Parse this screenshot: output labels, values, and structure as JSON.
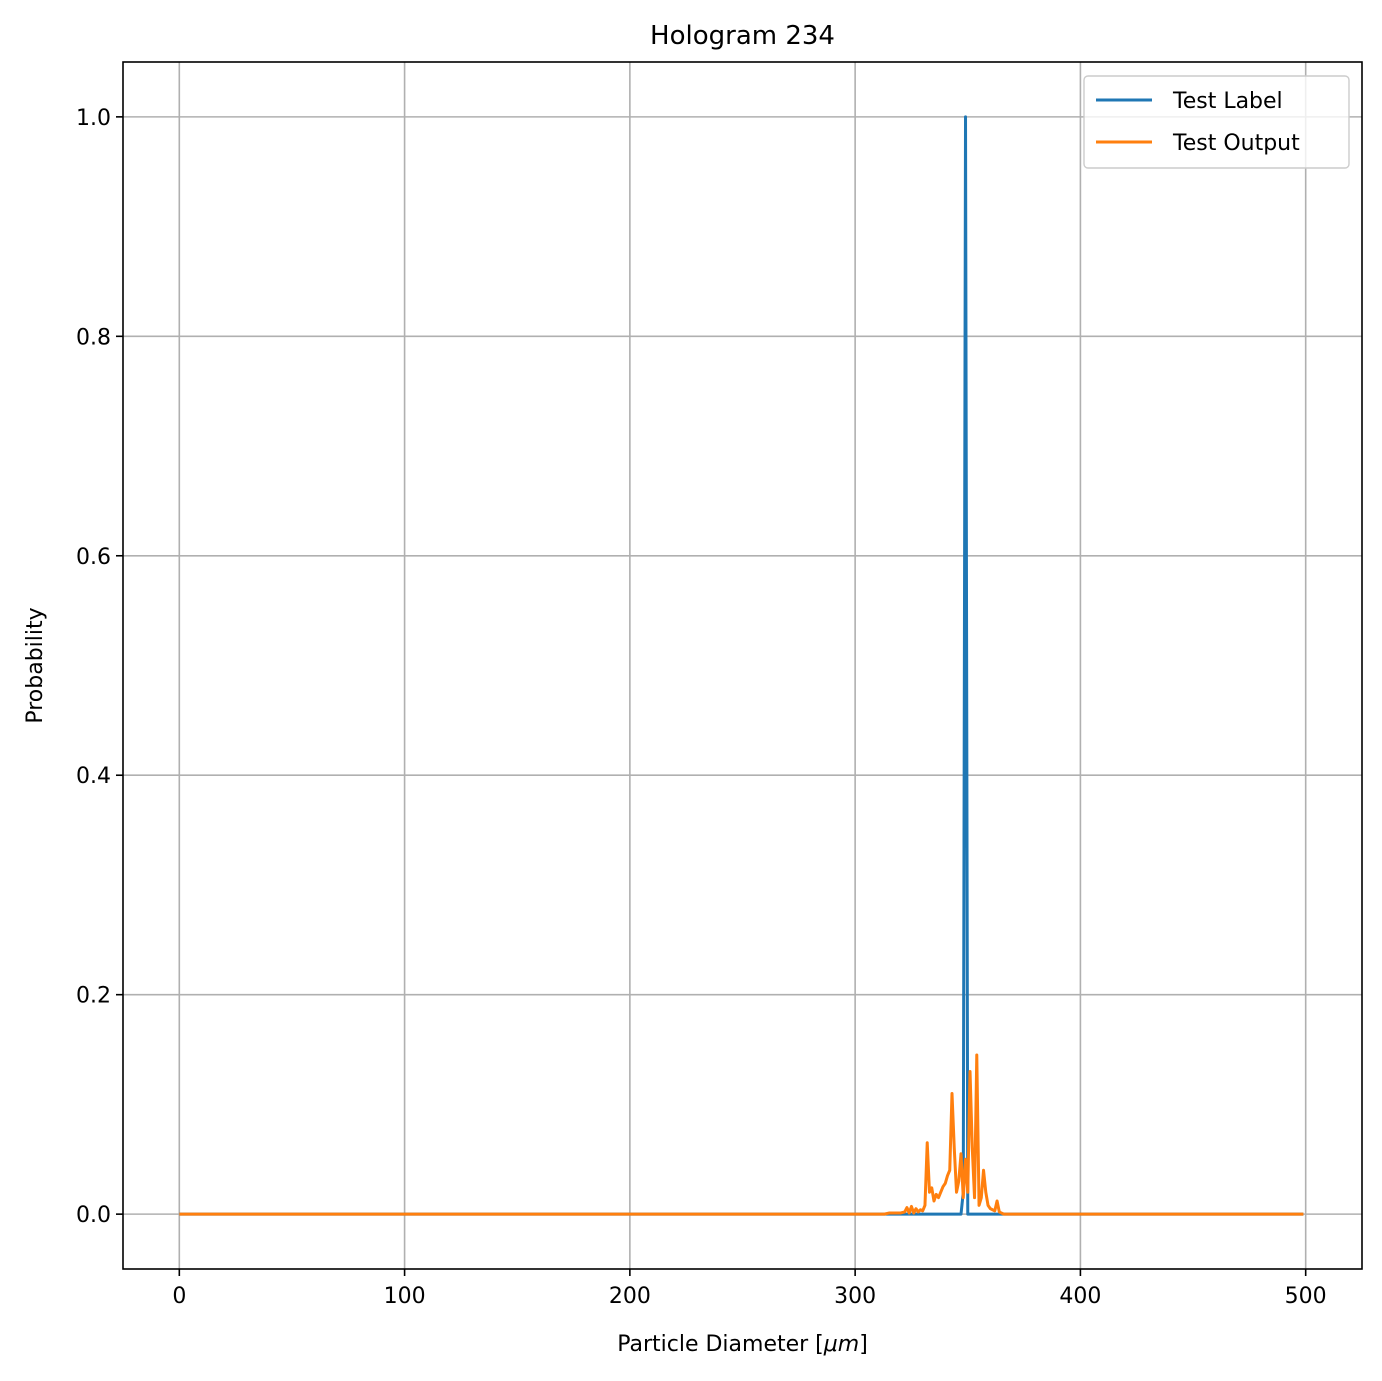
{
  "chart_data": {
    "type": "line",
    "title": "Hologram 234",
    "xlabel": "Particle Diameter [μm]",
    "xlabel_parts": {
      "main": "Particle Diameter [",
      "unit": "μm",
      "close": "]"
    },
    "ylabel": "Probability",
    "xlim": [
      -25,
      525
    ],
    "ylim": [
      -0.05,
      1.05
    ],
    "xticks": [
      0,
      100,
      200,
      300,
      400,
      500
    ],
    "xtick_labels": [
      "0",
      "100",
      "200",
      "300",
      "400",
      "500"
    ],
    "yticks": [
      0.0,
      0.2,
      0.4,
      0.6,
      0.8,
      1.0
    ],
    "ytick_labels": [
      "0.0",
      "0.2",
      "0.4",
      "0.6",
      "0.8",
      "1.0"
    ],
    "grid": true,
    "legend_position": "upper right",
    "series": [
      {
        "name": "Test Label",
        "color": "#1f77b4",
        "x": [
          0,
          347,
          348,
          349,
          350,
          351,
          499
        ],
        "y": [
          0,
          0,
          0.02,
          1.0,
          0.0,
          0,
          0
        ]
      },
      {
        "name": "Test Output",
        "color": "#ff7f0e",
        "x": [
          0,
          313,
          315,
          320,
          322,
          323,
          324,
          325,
          326,
          327,
          328,
          329,
          330,
          331,
          332,
          333,
          334,
          335,
          336,
          337,
          338,
          339,
          340,
          341,
          342,
          343,
          344,
          345,
          346,
          347,
          348,
          349,
          350,
          351,
          352,
          353,
          354,
          355,
          356,
          357,
          358,
          359,
          360,
          361,
          362,
          363,
          364,
          365,
          366,
          367,
          368,
          499
        ],
        "y": [
          0,
          0,
          0.001,
          0.001,
          0.002,
          0.006,
          0.001,
          0.007,
          0.001,
          0.005,
          0.002,
          0.004,
          0.003,
          0.008,
          0.065,
          0.02,
          0.024,
          0.012,
          0.018,
          0.015,
          0.02,
          0.025,
          0.028,
          0.035,
          0.04,
          0.11,
          0.06,
          0.02,
          0.03,
          0.055,
          0.015,
          0.05,
          0.02,
          0.13,
          0.06,
          0.015,
          0.145,
          0.008,
          0.015,
          0.04,
          0.02,
          0.008,
          0.005,
          0.004,
          0.003,
          0.012,
          0.002,
          0.001,
          0,
          0,
          0,
          0
        ]
      }
    ]
  }
}
